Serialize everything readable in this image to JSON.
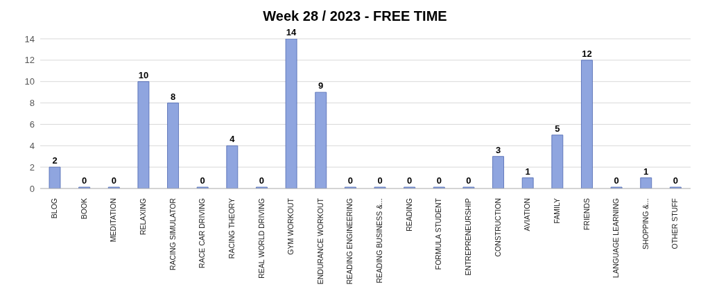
{
  "chart_data": {
    "type": "bar",
    "title": "Week 28 / 2023 - FREE TIME",
    "categories": [
      "BLOG",
      "BOOK",
      "MEDITATION",
      "RELAXING",
      "RACING SIMULATOR",
      "RACE CAR DRIVING",
      "RACING THEORY",
      "REAL WORLD DRIVING",
      "GYM WORKOUT",
      "ENDURANCE WORKOUT",
      "READING ENGINEERING",
      "READING BUSINESS &...",
      "READING",
      "FORMULA STUDENT",
      "ENTREPRENEURSHIP",
      "CONSTRUCTION",
      "AVIATION",
      "FAMILY",
      "FRIENDS",
      "LANGUAGE LEARNING",
      "SHOPPING &...",
      "OTHER STUFF"
    ],
    "values": [
      2,
      0,
      0,
      10,
      8,
      0,
      4,
      0,
      14,
      9,
      0,
      0,
      0,
      0,
      0,
      3,
      1,
      5,
      12,
      0,
      1,
      0
    ],
    "color": "#8fa5df",
    "ylim": [
      0,
      14
    ],
    "yticks": [
      0,
      2,
      4,
      6,
      8,
      10,
      12,
      14
    ],
    "grid": "y",
    "data_labels": true
  }
}
